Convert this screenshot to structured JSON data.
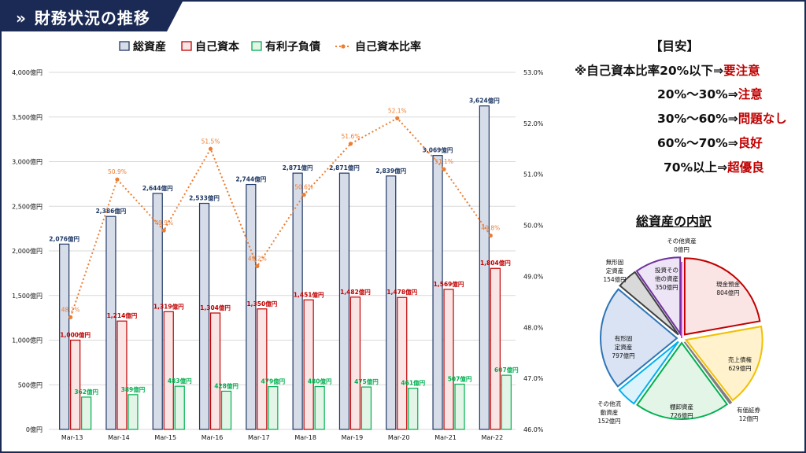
{
  "header": {
    "icon": "double-chevron-right-icon",
    "title": "財務状況の推移"
  },
  "guideline": {
    "title": "【目安】",
    "rows": [
      {
        "text": "※自己資本比率20%以下⇒",
        "rating": "要注意"
      },
      {
        "text": "20%～30%⇒",
        "rating": "注意"
      },
      {
        "text": "30%～60%⇒",
        "rating": "問題なし"
      },
      {
        "text": "60%～70%⇒",
        "rating": "良好"
      },
      {
        "text": "70%以上⇒",
        "rating": "超優良"
      }
    ]
  },
  "colors": {
    "total_assets_fill": "#d6dce8",
    "total_assets_stroke": "#1f3864",
    "equity_fill": "#fbe4e4",
    "equity_stroke": "#c00000",
    "debt_fill": "#e2f5e6",
    "debt_stroke": "#00b050",
    "ratio": "#ed7d31"
  },
  "chart_data": [
    {
      "type": "bar",
      "categories": [
        "Mar-13",
        "Mar-14",
        "Mar-15",
        "Mar-16",
        "Mar-17",
        "Mar-18",
        "Mar-19",
        "Mar-20",
        "Mar-21",
        "Mar-22"
      ],
      "series": [
        {
          "name": "総資産",
          "type": "bar",
          "axis": "left",
          "values": [
            2076,
            2386,
            2644,
            2533,
            2744,
            2871,
            2871,
            2839,
            3069,
            3624
          ],
          "labels": [
            "2,076億円",
            "2,386億円",
            "2,644億円",
            "2,533億円",
            "2,744億円",
            "2,871億円",
            "2,871億円",
            "2,839億円",
            "3,069億円",
            "3,624億円"
          ]
        },
        {
          "name": "自己資本",
          "type": "bar",
          "axis": "left",
          "values": [
            1000,
            1214,
            1319,
            1304,
            1350,
            1451,
            1482,
            1478,
            1569,
            1804
          ],
          "labels": [
            "1,000億円",
            "1,214億円",
            "1,319億円",
            "1,304億円",
            "1,350億円",
            "1,451億円",
            "1,482億円",
            "1,478億円",
            "1,569億円",
            "1,804億円"
          ]
        },
        {
          "name": "有利子負債",
          "type": "bar",
          "axis": "left",
          "values": [
            362,
            389,
            483,
            428,
            479,
            480,
            475,
            461,
            507,
            607
          ],
          "labels": [
            "362億円",
            "389億円",
            "483億円",
            "428億円",
            "479億円",
            "480億円",
            "475億円",
            "461億円",
            "507億円",
            "607億円"
          ]
        },
        {
          "name": "自己資本比率",
          "type": "line",
          "axis": "right",
          "values": [
            48.2,
            50.9,
            49.9,
            51.5,
            49.2,
            50.6,
            51.6,
            52.1,
            51.1,
            49.8
          ],
          "labels": [
            "48.2%",
            "50.9%",
            "49.9%",
            "51.5%",
            "49.2%",
            "50.6%",
            "51.6%",
            "52.1%",
            "51.1%",
            "49.8%"
          ]
        }
      ],
      "ylim": [
        0,
        4000
      ],
      "y_ticks": [
        "0億円",
        "500億円",
        "1,000億円",
        "1,500億円",
        "2,000億円",
        "2,500億円",
        "3,000億円",
        "3,500億円",
        "4,000億円"
      ],
      "y2lim": [
        46.0,
        53.0
      ],
      "y2_ticks": [
        "46.0%",
        "47.0%",
        "48.0%",
        "49.0%",
        "50.0%",
        "51.0%",
        "52.0%",
        "53.0%"
      ],
      "grid": true,
      "legend": "top-center"
    },
    {
      "type": "pie",
      "title": "総資産の内訳",
      "slices": [
        {
          "label": "現金預金",
          "value": 804,
          "value_label": "804億円"
        },
        {
          "label": "売上債権",
          "value": 629,
          "value_label": "629億円"
        },
        {
          "label": "有価証券",
          "value": 12,
          "value_label": "12億円"
        },
        {
          "label": "棚卸資産",
          "value": 726,
          "value_label": "726億円"
        },
        {
          "label": "その他流動資産",
          "value": 152,
          "value_label": "152億円"
        },
        {
          "label": "有形固定資産",
          "value": 797,
          "value_label": "797億円"
        },
        {
          "label": "無形固定資産",
          "value": 154,
          "value_label": "154億円"
        },
        {
          "label": "投資その他の資産",
          "value": 350,
          "value_label": "350億円"
        },
        {
          "label": "その他資産",
          "value": 0,
          "value_label": "0億円"
        }
      ],
      "slice_colors": [
        {
          "fill": "#fbe4e4",
          "stroke": "#c00000"
        },
        {
          "fill": "#fff2cc",
          "stroke": "#f2c000"
        },
        {
          "fill": "#f2f2f2",
          "stroke": "#7f7f7f"
        },
        {
          "fill": "#e2f5e6",
          "stroke": "#00b050"
        },
        {
          "fill": "#ddf3fb",
          "stroke": "#00b0f0"
        },
        {
          "fill": "#dae3f3",
          "stroke": "#2e75b6"
        },
        {
          "fill": "#d9d9d9",
          "stroke": "#404040"
        },
        {
          "fill": "#ede4f5",
          "stroke": "#7030a0"
        },
        {
          "fill": "#fce4f3",
          "stroke": "#ff00cc"
        }
      ]
    }
  ]
}
